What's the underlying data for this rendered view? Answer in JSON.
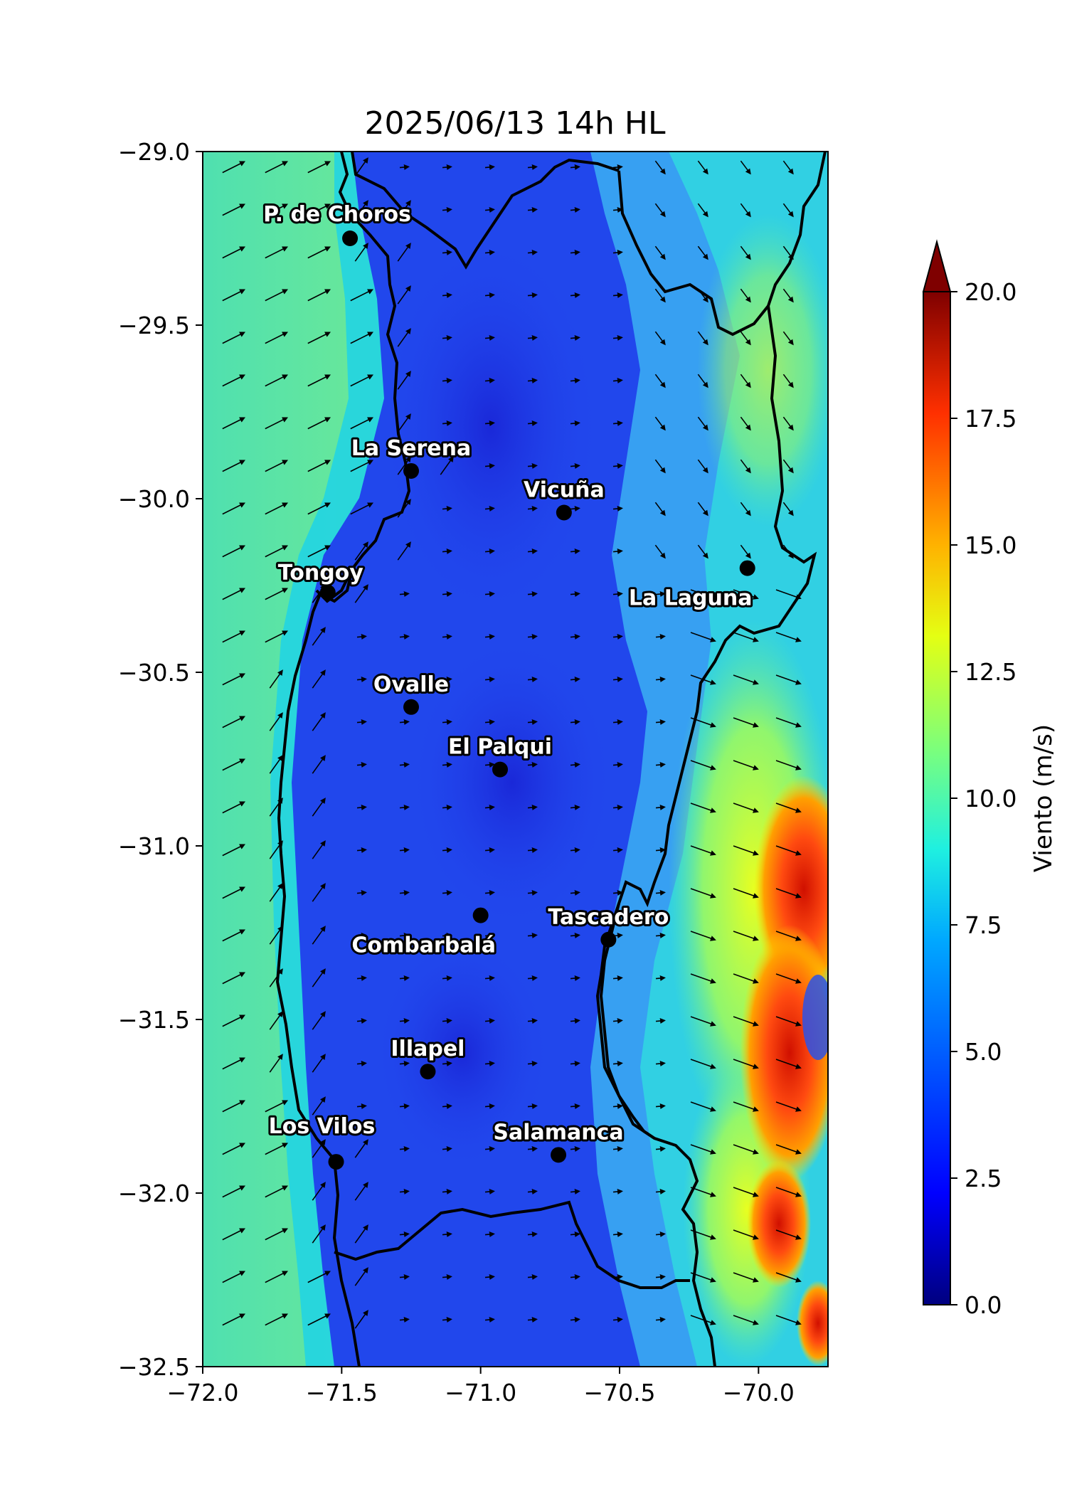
{
  "map": {
    "title": "2025/06/13 14h HL",
    "xlim": [
      -72.0,
      -69.75
    ],
    "ylim": [
      -32.5,
      -29.0
    ],
    "x_ticks": [
      {
        "value": -72.0,
        "label": "−72.0"
      },
      {
        "value": -71.5,
        "label": "−71.5"
      },
      {
        "value": -71.0,
        "label": "−71.0"
      },
      {
        "value": -70.5,
        "label": "−70.5"
      },
      {
        "value": -70.0,
        "label": "−70.0"
      }
    ],
    "y_ticks": [
      {
        "value": -29.0,
        "label": "−29.0"
      },
      {
        "value": -29.5,
        "label": "−29.5"
      },
      {
        "value": -30.0,
        "label": "−30.0"
      },
      {
        "value": -30.5,
        "label": "−30.5"
      },
      {
        "value": -31.0,
        "label": "−31.0"
      },
      {
        "value": -31.5,
        "label": "−31.5"
      },
      {
        "value": -32.0,
        "label": "−32.0"
      },
      {
        "value": -32.5,
        "label": "−32.5"
      }
    ],
    "colorbar": {
      "label": "Viento (m/s)",
      "min": 0.0,
      "max": 20.0,
      "extend": "max",
      "colormap": "jet",
      "ticks": [
        {
          "value": 0.0,
          "label": "0.0"
        },
        {
          "value": 2.5,
          "label": "2.5"
        },
        {
          "value": 5.0,
          "label": "5.0"
        },
        {
          "value": 7.5,
          "label": "7.5"
        },
        {
          "value": 10.0,
          "label": "10.0"
        },
        {
          "value": 12.5,
          "label": "12.5"
        },
        {
          "value": 15.0,
          "label": "15.0"
        },
        {
          "value": 17.5,
          "label": "17.5"
        },
        {
          "value": 20.0,
          "label": "20.0"
        }
      ]
    },
    "cities": [
      {
        "id": "p-de-choros",
        "name": "P. de Choros",
        "lon": -71.47,
        "lat": -29.25,
        "label_pos": "above"
      },
      {
        "id": "la-serena",
        "name": "La Serena",
        "lon": -71.25,
        "lat": -29.92,
        "label_pos": "above"
      },
      {
        "id": "vicuna",
        "name": "Vicuña",
        "lon": -70.7,
        "lat": -30.04,
        "label_pos": "above"
      },
      {
        "id": "tongoy",
        "name": "Tongoy",
        "lon": -71.55,
        "lat": -30.27,
        "label_pos": "above"
      },
      {
        "id": "la-laguna",
        "name": "La Laguna",
        "lon": -70.04,
        "lat": -30.2,
        "label_pos": "below-left"
      },
      {
        "id": "ovalle",
        "name": "Ovalle",
        "lon": -71.25,
        "lat": -30.6,
        "label_pos": "above"
      },
      {
        "id": "el-palqui",
        "name": "El Palqui",
        "lon": -70.93,
        "lat": -30.78,
        "label_pos": "above"
      },
      {
        "id": "combarbala",
        "name": "Combarbalá",
        "lon": -71.0,
        "lat": -31.2,
        "label_pos": "below-left"
      },
      {
        "id": "tascadero",
        "name": "Tascadero",
        "lon": -70.54,
        "lat": -31.27,
        "label_pos": "above"
      },
      {
        "id": "illapel",
        "name": "Illapel",
        "lon": -71.19,
        "lat": -31.65,
        "label_pos": "above"
      },
      {
        "id": "los-vilos",
        "name": "Los Vilos",
        "lon": -71.52,
        "lat": -31.91,
        "label_pos": "above-left"
      },
      {
        "id": "salamanca",
        "name": "Salamanca",
        "lon": -70.72,
        "lat": -31.89,
        "label_pos": "above"
      }
    ],
    "colors": {
      "ocean": "#5ee8a8",
      "coast_band": "#2ad8d8",
      "land_low": "#1e3ff0",
      "andes": "#3fb0f5",
      "high_wind": "#ff3a10",
      "border": "#000000",
      "marker": "#000000"
    }
  }
}
